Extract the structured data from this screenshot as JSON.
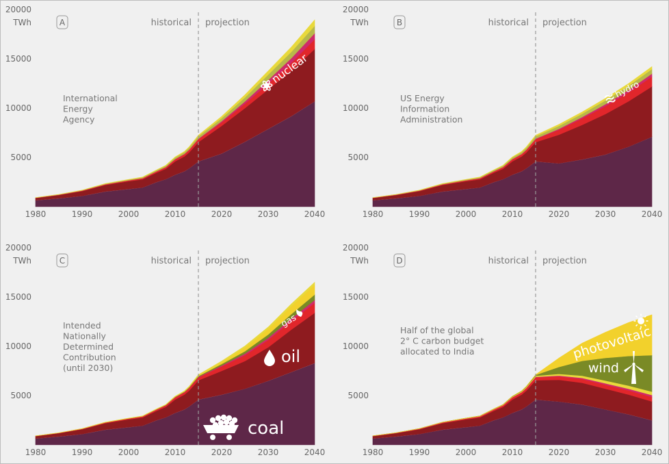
{
  "colors": {
    "coal": "#5e2748",
    "oil": "#8e1b1f",
    "gas": "#e1262b",
    "nuclear": "#cf2a6a",
    "hydro": "#e8d93c",
    "wind": "#7a8a26",
    "solar": "#f2d12c",
    "other": "#b7b84a",
    "text": "#777777",
    "divider": "#999999"
  },
  "shared": {
    "unit": "TWh",
    "historical_label": "historical",
    "projection_label": "projection"
  },
  "chart_data": [
    {
      "type": "area",
      "panel_label": "A",
      "annotation": [
        "International",
        "Energy",
        "Agency"
      ],
      "series_label": {
        "name": "nuclear",
        "icon": "atom-icon"
      },
      "x_ticks": [
        1980,
        1990,
        2000,
        2010,
        2020,
        2030,
        2040
      ],
      "y_ticks": [
        5000,
        10000,
        15000,
        20000
      ],
      "xlim": [
        1980,
        2040
      ],
      "ylim": [
        0,
        20000
      ],
      "divider_x": 2015,
      "x": [
        1980,
        1985,
        1990,
        1995,
        2000,
        2003,
        2006,
        2008,
        2010,
        2012,
        2013,
        2015,
        2020,
        2025,
        2030,
        2035,
        2040
      ],
      "series": [
        {
          "key": "coal",
          "values": [
            650,
            850,
            1100,
            1550,
            1800,
            1950,
            2500,
            2800,
            3250,
            3600,
            3900,
            4600,
            5400,
            6600,
            7900,
            9200,
            10700
          ]
        },
        {
          "key": "oil",
          "values": [
            230,
            330,
            480,
            650,
            780,
            820,
            950,
            1050,
            1350,
            1500,
            1600,
            1950,
            2800,
            3400,
            4000,
            4600,
            5300
          ]
        },
        {
          "key": "gas",
          "values": [
            20,
            25,
            40,
            60,
            80,
            100,
            120,
            150,
            200,
            220,
            250,
            300,
            350,
            450,
            600,
            800,
            1000
          ]
        },
        {
          "key": "nuclear",
          "values": [
            5,
            10,
            15,
            20,
            20,
            25,
            25,
            30,
            40,
            40,
            40,
            50,
            130,
            230,
            350,
            480,
            600
          ]
        },
        {
          "key": "other",
          "values": [
            10,
            20,
            30,
            40,
            60,
            80,
            100,
            120,
            150,
            180,
            200,
            240,
            300,
            400,
            550,
            650,
            750
          ]
        },
        {
          "key": "hydro",
          "values": [
            10,
            15,
            20,
            25,
            30,
            35,
            40,
            50,
            60,
            70,
            80,
            110,
            180,
            270,
            370,
            480,
            600
          ]
        }
      ]
    },
    {
      "type": "area",
      "panel_label": "B",
      "annotation": [
        "US Energy",
        "Information",
        "Administration"
      ],
      "series_label": {
        "name": "hydro",
        "icon": "water-icon"
      },
      "x_ticks": [
        1980,
        1990,
        2000,
        2010,
        2020,
        2030,
        2040
      ],
      "y_ticks": [
        5000,
        10000,
        15000,
        20000
      ],
      "xlim": [
        1980,
        2040
      ],
      "ylim": [
        0,
        20000
      ],
      "divider_x": 2015,
      "x": [
        1980,
        1985,
        1990,
        1995,
        2000,
        2003,
        2006,
        2008,
        2010,
        2012,
        2013,
        2015,
        2020,
        2025,
        2030,
        2035,
        2040
      ],
      "series": [
        {
          "key": "coal",
          "values": [
            650,
            850,
            1100,
            1550,
            1800,
            1950,
            2500,
            2800,
            3250,
            3600,
            3900,
            4600,
            4400,
            4800,
            5300,
            6100,
            7100
          ]
        },
        {
          "key": "oil",
          "values": [
            230,
            330,
            480,
            650,
            780,
            820,
            950,
            1050,
            1350,
            1500,
            1600,
            1950,
            2900,
            3500,
            4100,
            4600,
            5100
          ]
        },
        {
          "key": "gas",
          "values": [
            20,
            25,
            40,
            60,
            80,
            100,
            120,
            150,
            200,
            220,
            250,
            300,
            500,
            650,
            800,
            900,
            1000
          ]
        },
        {
          "key": "nuclear",
          "values": [
            5,
            10,
            15,
            20,
            20,
            25,
            25,
            30,
            40,
            40,
            40,
            50,
            100,
            150,
            200,
            250,
            300
          ]
        },
        {
          "key": "other",
          "values": [
            10,
            20,
            30,
            40,
            60,
            80,
            100,
            120,
            150,
            180,
            200,
            240,
            300,
            330,
            380,
            420,
            460
          ]
        },
        {
          "key": "hydro",
          "values": [
            10,
            15,
            20,
            25,
            30,
            35,
            40,
            50,
            60,
            70,
            80,
            110,
            150,
            180,
            210,
            230,
            250
          ]
        }
      ]
    },
    {
      "type": "area",
      "panel_label": "C",
      "annotation": [
        "Intended",
        "Nationally",
        "Determined",
        "Contribution",
        "(until 2030)"
      ],
      "series_label": {
        "name": "gas",
        "icon": "flame-icon"
      },
      "big_labels": [
        {
          "name": "oil",
          "icon": "droplet-icon"
        },
        {
          "name": "coal",
          "icon": "coal-cart-icon"
        }
      ],
      "x_ticks": [
        1980,
        1990,
        2000,
        2010,
        2020,
        2030,
        2040
      ],
      "y_ticks": [
        5000,
        10000,
        15000,
        20000
      ],
      "xlim": [
        1980,
        2040
      ],
      "ylim": [
        0,
        20000
      ],
      "divider_x": 2015,
      "x": [
        1980,
        1985,
        1990,
        1995,
        2000,
        2003,
        2006,
        2008,
        2010,
        2012,
        2013,
        2015,
        2020,
        2025,
        2030,
        2035,
        2040
      ],
      "series": [
        {
          "key": "coal",
          "values": [
            650,
            850,
            1100,
            1550,
            1800,
            1950,
            2500,
            2800,
            3250,
            3600,
            3900,
            4600,
            5100,
            5700,
            6500,
            7400,
            8300
          ]
        },
        {
          "key": "oil",
          "values": [
            230,
            330,
            480,
            650,
            780,
            820,
            950,
            1050,
            1350,
            1500,
            1600,
            1950,
            2400,
            2800,
            3400,
            4300,
            5100
          ]
        },
        {
          "key": "gas",
          "values": [
            20,
            25,
            40,
            60,
            80,
            100,
            120,
            150,
            200,
            220,
            250,
            300,
            450,
            600,
            750,
            880,
            1000
          ]
        },
        {
          "key": "nuclear",
          "values": [
            5,
            10,
            15,
            20,
            20,
            25,
            25,
            30,
            40,
            40,
            40,
            50,
            100,
            150,
            200,
            250,
            300
          ]
        },
        {
          "key": "wind",
          "values": [
            0,
            0,
            0,
            0,
            5,
            10,
            15,
            20,
            30,
            40,
            50,
            80,
            150,
            250,
            350,
            450,
            550
          ]
        },
        {
          "key": "solar",
          "values": [
            0,
            0,
            0,
            0,
            0,
            0,
            0,
            0,
            5,
            10,
            15,
            30,
            150,
            350,
            550,
            800,
            1000
          ]
        },
        {
          "key": "hydro",
          "values": [
            10,
            15,
            20,
            25,
            30,
            35,
            40,
            50,
            60,
            70,
            80,
            110,
            150,
            180,
            200,
            230,
            250
          ]
        }
      ]
    },
    {
      "type": "area",
      "panel_label": "D",
      "annotation": [
        "Half of the global",
        "2° C carbon budget",
        "allocated to India"
      ],
      "big_labels": [
        {
          "name": "photovoltaic",
          "icon": "sun-icon"
        },
        {
          "name": "wind",
          "icon": "wind-turbine-icon"
        }
      ],
      "x_ticks": [
        1980,
        1990,
        2000,
        2010,
        2020,
        2030,
        2040
      ],
      "y_ticks": [
        5000,
        10000,
        15000,
        20000
      ],
      "xlim": [
        1980,
        2040
      ],
      "ylim": [
        0,
        20000
      ],
      "divider_x": 2015,
      "x": [
        1980,
        1985,
        1990,
        1995,
        2000,
        2003,
        2006,
        2008,
        2010,
        2012,
        2013,
        2015,
        2020,
        2025,
        2030,
        2035,
        2040
      ],
      "series": [
        {
          "key": "coal",
          "values": [
            650,
            850,
            1100,
            1550,
            1800,
            1950,
            2500,
            2800,
            3250,
            3600,
            3900,
            4600,
            4400,
            4100,
            3600,
            3100,
            2500
          ]
        },
        {
          "key": "oil",
          "values": [
            230,
            330,
            480,
            650,
            780,
            820,
            950,
            1050,
            1350,
            1500,
            1600,
            1950,
            2200,
            2200,
            2100,
            2000,
            1900
          ]
        },
        {
          "key": "gas",
          "values": [
            20,
            25,
            40,
            60,
            80,
            100,
            120,
            150,
            200,
            220,
            250,
            300,
            350,
            380,
            400,
            420,
            450
          ]
        },
        {
          "key": "nuclear",
          "values": [
            5,
            10,
            15,
            20,
            20,
            25,
            25,
            30,
            40,
            40,
            40,
            50,
            80,
            110,
            140,
            170,
            200
          ]
        },
        {
          "key": "hydro",
          "values": [
            10,
            15,
            20,
            25,
            30,
            35,
            40,
            50,
            60,
            70,
            80,
            110,
            170,
            230,
            280,
            320,
            350
          ]
        },
        {
          "key": "wind",
          "values": [
            0,
            0,
            0,
            0,
            5,
            10,
            15,
            20,
            30,
            40,
            50,
            80,
            700,
            1500,
            2300,
            3000,
            3700
          ]
        },
        {
          "key": "solar",
          "values": [
            0,
            0,
            0,
            0,
            0,
            0,
            0,
            0,
            5,
            10,
            15,
            30,
            900,
            1800,
            2600,
            3400,
            4100
          ]
        }
      ]
    }
  ]
}
